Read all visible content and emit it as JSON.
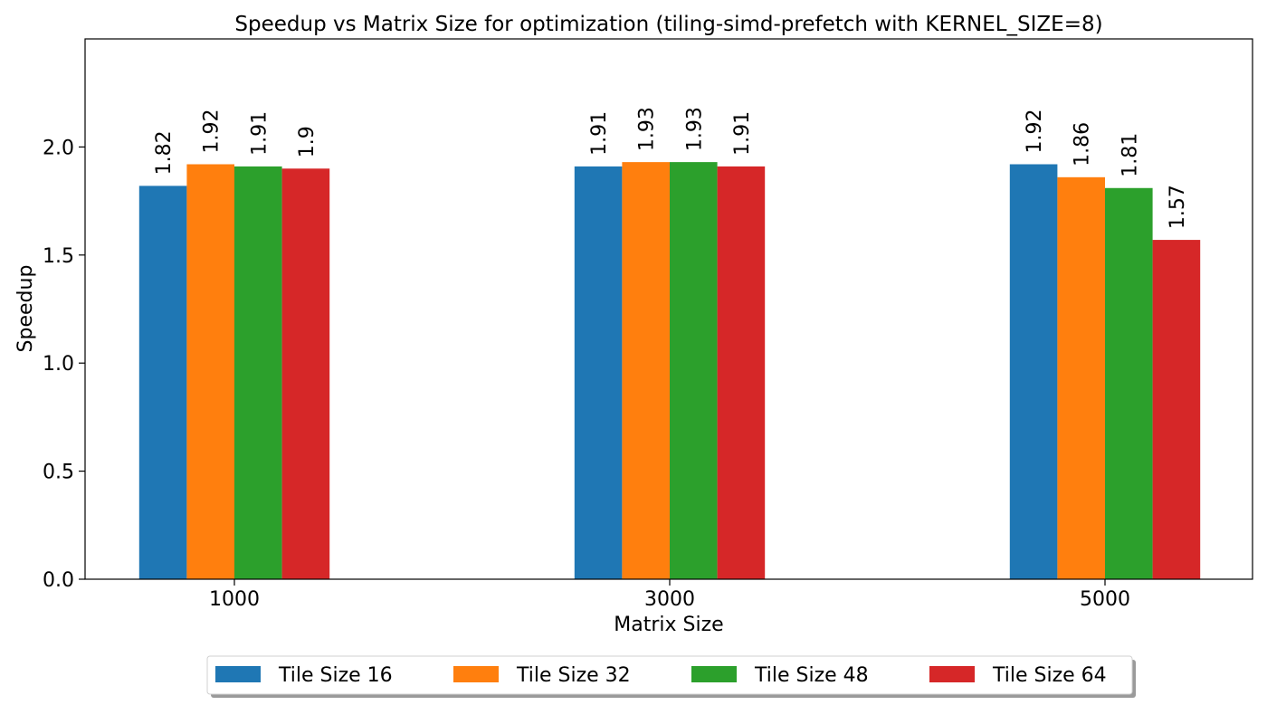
{
  "chart_data": {
    "type": "bar",
    "title": "Speedup vs Matrix Size for optimization (tiling-simd-prefetch with KERNEL_SIZE=8)",
    "xlabel": "Matrix Size",
    "ylabel": "Speedup",
    "categories": [
      "1000",
      "3000",
      "5000"
    ],
    "ylim": [
      0,
      2.5
    ],
    "yticks": [
      0.0,
      0.5,
      1.0,
      1.5,
      2.0
    ],
    "ytick_labels": [
      "0.0",
      "0.5",
      "1.0",
      "1.5",
      "2.0"
    ],
    "grid": false,
    "legend_position": "bottom-center",
    "series": [
      {
        "name": "Tile Size 16",
        "color": "#1f77b4",
        "values": [
          1.82,
          1.91,
          1.92
        ],
        "labels": [
          "1.82",
          "1.91",
          "1.92"
        ]
      },
      {
        "name": "Tile Size 32",
        "color": "#ff7f0e",
        "values": [
          1.92,
          1.93,
          1.86
        ],
        "labels": [
          "1.92",
          "1.93",
          "1.86"
        ]
      },
      {
        "name": "Tile Size 48",
        "color": "#2ca02c",
        "values": [
          1.91,
          1.93,
          1.81
        ],
        "labels": [
          "1.91",
          "1.93",
          "1.81"
        ]
      },
      {
        "name": "Tile Size 64",
        "color": "#d62728",
        "values": [
          1.9,
          1.91,
          1.57
        ],
        "labels": [
          "1.9",
          "1.91",
          "1.57"
        ]
      }
    ]
  }
}
